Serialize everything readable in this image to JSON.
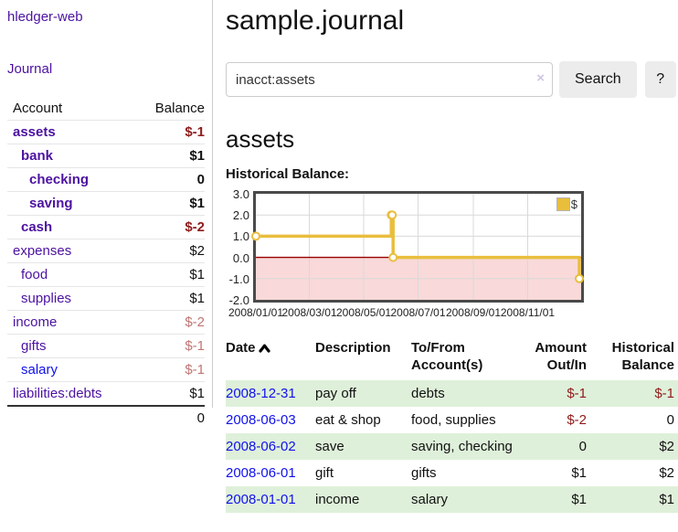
{
  "sidebar": {
    "brand": "hledger-web",
    "journal_link": "Journal",
    "table": {
      "account_header": "Account",
      "balance_header": "Balance",
      "rows": [
        {
          "name": "assets",
          "balance": "$-1"
        },
        {
          "name": "bank",
          "balance": "$1"
        },
        {
          "name": "checking",
          "balance": "0"
        },
        {
          "name": "saving",
          "balance": "$1"
        },
        {
          "name": "cash",
          "balance": "$-2"
        },
        {
          "name": "expenses",
          "balance": "$2"
        },
        {
          "name": "food",
          "balance": "$1"
        },
        {
          "name": "supplies",
          "balance": "$1"
        },
        {
          "name": "income",
          "balance": "$-2"
        },
        {
          "name": "gifts",
          "balance": "$-1"
        },
        {
          "name": "salary",
          "balance": "$-1"
        },
        {
          "name": "liabilities:debts",
          "balance": "$1"
        }
      ],
      "total": "0"
    }
  },
  "header": {
    "title": "sample.journal"
  },
  "search": {
    "value": "inacct:assets",
    "clear": "×",
    "search_button": "Search",
    "help_button": "?"
  },
  "page": {
    "heading": "assets"
  },
  "chart_data": {
    "type": "line",
    "step": true,
    "title": "Historical Balance:",
    "x_range": [
      "2008-01-01",
      "2008-12-31"
    ],
    "ylim": [
      -2,
      3
    ],
    "yticks": [
      {
        "v": 3,
        "label": "3.0"
      },
      {
        "v": 2,
        "label": "2.0"
      },
      {
        "v": 1,
        "label": "1.0"
      },
      {
        "v": 0,
        "label": "0.0"
      },
      {
        "v": -1,
        "label": "-1.0"
      },
      {
        "v": -2,
        "label": "-2.0"
      }
    ],
    "xticks": [
      {
        "date": "2008-01-01",
        "label": "2008/01/01"
      },
      {
        "date": "2008-03-01",
        "label": "2008/03/01"
      },
      {
        "date": "2008-05-01",
        "label": "2008/05/01"
      },
      {
        "date": "2008-07-01",
        "label": "2008/07/01"
      },
      {
        "date": "2008-09-01",
        "label": "2008/09/01"
      },
      {
        "date": "2008-11-01",
        "label": "2008/11/01"
      }
    ],
    "series": [
      {
        "name": "$",
        "color": "#e9be3d",
        "points": [
          {
            "x": "2008-01-01",
            "y": 1
          },
          {
            "x": "2008-06-01",
            "y": 2
          },
          {
            "x": "2008-06-02",
            "y": 2
          },
          {
            "x": "2008-06-03",
            "y": 0
          },
          {
            "x": "2008-12-31",
            "y": -1
          }
        ]
      }
    ],
    "legend_position": "top-right",
    "grid": true,
    "grid_color": "#d9d9d9",
    "zero_line_color": "#990000",
    "negative_region_color": "#f9d9d9"
  },
  "register": {
    "headers": {
      "date": "Date",
      "description": "Description",
      "tofrom1": "To/From",
      "tofrom2": "Account(s)",
      "amount1": "Amount",
      "amount2": "Out/In",
      "balance1": "Historical",
      "balance2": "Balance"
    },
    "rows": [
      {
        "date": "2008-12-31",
        "description": "pay off",
        "accounts": "debts",
        "amount": "$-1",
        "balance": "$-1"
      },
      {
        "date": "2008-06-03",
        "description": "eat & shop",
        "accounts": "food, supplies",
        "amount": "$-2",
        "balance": "0"
      },
      {
        "date": "2008-06-02",
        "description": "save",
        "accounts": "saving, checking",
        "amount": "0",
        "balance": "$2"
      },
      {
        "date": "2008-06-01",
        "description": "gift",
        "accounts": "gifts",
        "amount": "$1",
        "balance": "$2"
      },
      {
        "date": "2008-01-01",
        "description": "income",
        "accounts": "salary",
        "amount": "$1",
        "balance": "$1"
      }
    ]
  }
}
